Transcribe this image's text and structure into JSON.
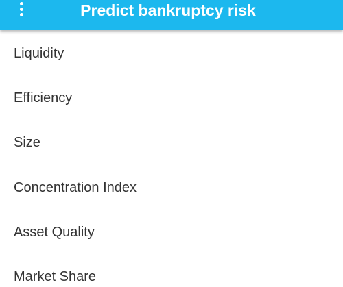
{
  "header": {
    "title": "Predict bankruptcy risk"
  },
  "list": {
    "items": [
      "Liquidity",
      "Efficiency",
      "Size",
      "Concentration Index",
      "Asset Quality",
      "Market Share"
    ]
  }
}
